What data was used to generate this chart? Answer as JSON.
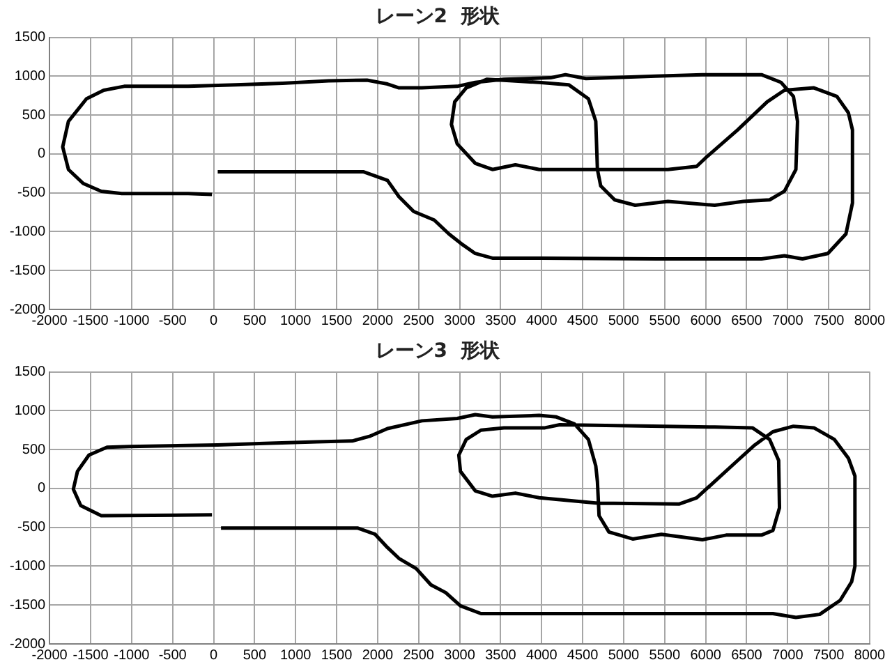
{
  "chart_data": [
    {
      "type": "line",
      "title": "レーン2  形状",
      "xlim": [
        -2000,
        8000
      ],
      "xticks": [
        -2000,
        -1500,
        -1000,
        -500,
        0,
        500,
        1000,
        1500,
        2000,
        2500,
        3000,
        3500,
        4000,
        4500,
        5000,
        5500,
        6000,
        6500,
        7000,
        7500,
        8000
      ],
      "ylim": [
        -2000,
        1500
      ],
      "yticks": [
        -2000,
        -1500,
        -1000,
        -500,
        0,
        500,
        1000,
        1500
      ],
      "grid": true,
      "legend": false,
      "marker": "none",
      "line_style": "solid",
      "series": [
        {
          "color": "#000000",
          "x": [
            50,
            1830,
            2120,
            2260,
            2440,
            2690,
            2870,
            3040,
            3190,
            3400,
            4000,
            5390,
            6680,
            6960,
            7180,
            7490,
            7710,
            7790,
            7790,
            7740,
            7600,
            7320,
            6960,
            6750,
            6390,
            6000,
            5890,
            5540,
            3970,
            3680,
            3400,
            3190,
            2970,
            2900,
            2940,
            3080,
            3330,
            3970,
            4330,
            4570,
            4660,
            4680,
            4720,
            4890,
            5140,
            5540,
            6110,
            6460,
            6780,
            6960,
            7100,
            7120,
            7070,
            6920,
            6680,
            5960,
            5390,
            4540,
            4290,
            4110,
            3540,
            3190,
            2970,
            2540,
            2260,
            2120,
            1870,
            1400,
            840,
            270,
            -310,
            -1090,
            -1340,
            -1550,
            -1770,
            -1840,
            -1770,
            -1590,
            -1370,
            -1120,
            -310,
            -20
          ],
          "values": [
            -230,
            -230,
            -340,
            -550,
            -740,
            -850,
            -1030,
            -1170,
            -1280,
            -1340,
            -1340,
            -1350,
            -1350,
            -1310,
            -1350,
            -1280,
            -1030,
            -630,
            310,
            530,
            740,
            850,
            820,
            670,
            310,
            -50,
            -160,
            -200,
            -200,
            -140,
            -200,
            -120,
            130,
            380,
            670,
            850,
            960,
            920,
            890,
            710,
            420,
            -200,
            -410,
            -590,
            -660,
            -610,
            -660,
            -610,
            -590,
            -480,
            -200,
            420,
            740,
            920,
            1020,
            1020,
            1000,
            970,
            1020,
            980,
            960,
            920,
            870,
            850,
            850,
            900,
            950,
            940,
            910,
            890,
            870,
            870,
            820,
            710,
            420,
            90,
            -200,
            -380,
            -480,
            -510,
            -510,
            -520
          ]
        }
      ]
    },
    {
      "type": "line",
      "title": "レーン3  形状",
      "xlim": [
        -2000,
        8000
      ],
      "xticks": [
        -2000,
        -1500,
        -1000,
        -500,
        0,
        500,
        1000,
        1500,
        2000,
        2500,
        3000,
        3500,
        4000,
        4500,
        5000,
        5500,
        6000,
        6500,
        7000,
        7500,
        8000
      ],
      "ylim": [
        -2000,
        1500
      ],
      "yticks": [
        -2000,
        -1500,
        -1000,
        -500,
        0,
        500,
        1000,
        1500
      ],
      "grid": true,
      "legend": false,
      "marker": "none",
      "line_style": "solid",
      "series": [
        {
          "color": "#000000",
          "x": [
            90,
            1760,
            1970,
            2120,
            2260,
            2470,
            2650,
            2830,
            3010,
            3260,
            4680,
            6680,
            6820,
            7100,
            7390,
            7640,
            7780,
            7820,
            7820,
            7740,
            7570,
            7320,
            7070,
            6820,
            6600,
            6390,
            6110,
            5890,
            5680,
            4680,
            3970,
            3680,
            3400,
            3190,
            3010,
            2990,
            3080,
            3260,
            3540,
            4040,
            4220,
            6110,
            6570,
            6780,
            6890,
            6900,
            6820,
            6680,
            6250,
            5960,
            5460,
            5110,
            4820,
            4700,
            4680,
            4660,
            4570,
            4400,
            4180,
            3970,
            3400,
            3190,
            2970,
            2540,
            2120,
            1900,
            1690,
            1260,
            620,
            50,
            -1020,
            -1300,
            -1520,
            -1660,
            -1710,
            -1620,
            -1370,
            -20
          ],
          "values": [
            -510,
            -510,
            -590,
            -760,
            -900,
            -1030,
            -1240,
            -1340,
            -1510,
            -1610,
            -1610,
            -1610,
            -1610,
            -1660,
            -1620,
            -1440,
            -1200,
            -1000,
            160,
            390,
            630,
            780,
            800,
            730,
            560,
            360,
            90,
            -120,
            -200,
            -190,
            -120,
            -60,
            -100,
            -30,
            220,
            430,
            630,
            750,
            780,
            780,
            820,
            790,
            780,
            630,
            360,
            -250,
            -540,
            -600,
            -600,
            -660,
            -590,
            -650,
            -560,
            -350,
            90,
            290,
            630,
            830,
            920,
            940,
            920,
            950,
            900,
            870,
            770,
            670,
            610,
            600,
            580,
            560,
            540,
            530,
            430,
            220,
            -10,
            -220,
            -350,
            -340
          ]
        }
      ]
    }
  ]
}
